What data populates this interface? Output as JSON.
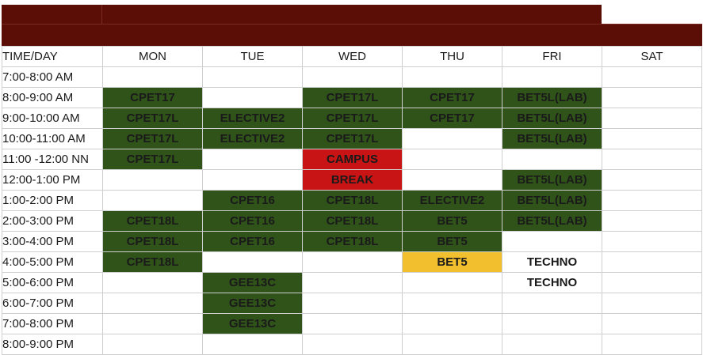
{
  "days": [
    "MON",
    "TUE",
    "WED",
    "THU",
    "FRI",
    "SAT"
  ],
  "corner_label": "TIME/DAY",
  "colors": {
    "header_band": "#5a0e06",
    "class_green": "#2f5319",
    "break_red": "#c81414",
    "highlight_yellow": "#f2c02f",
    "grid_line": "#cfcfcf"
  },
  "rows": [
    {
      "time": "7:00-8:00 AM",
      "cells": [
        "",
        "",
        "",
        "",
        "",
        ""
      ]
    },
    {
      "time": "8:00-9:00 AM",
      "cells": [
        "CPET17",
        "",
        "CPET17L",
        "CPET17",
        "BET5L(LAB)",
        ""
      ]
    },
    {
      "time": "9:00-10:00 AM",
      "cells": [
        "CPET17L",
        "ELECTIVE2",
        "CPET17L",
        "CPET17",
        "BET5L(LAB)",
        ""
      ]
    },
    {
      "time": "10:00-11:00 AM",
      "cells": [
        "CPET17L",
        "ELECTIVE2",
        "CPET17L",
        "",
        "BET5L(LAB)",
        ""
      ]
    },
    {
      "time": "11:00 -12:00 NN",
      "cells": [
        "CPET17L",
        "",
        "CAMPUS",
        "",
        "",
        ""
      ]
    },
    {
      "time": "12:00-1:00 PM",
      "cells": [
        "",
        "",
        "BREAK",
        "",
        "BET5L(LAB)",
        ""
      ]
    },
    {
      "time": "1:00-2:00 PM",
      "cells": [
        "",
        "CPET16",
        "CPET18L",
        "ELECTIVE2",
        "BET5L(LAB)",
        ""
      ]
    },
    {
      "time": "2:00-3:00 PM",
      "cells": [
        "CPET18L",
        "CPET16",
        "CPET18L",
        "BET5",
        "BET5L(LAB)",
        ""
      ]
    },
    {
      "time": "3:00-4:00 PM",
      "cells": [
        "CPET18L",
        "CPET16",
        "CPET18L",
        "BET5",
        "",
        ""
      ]
    },
    {
      "time": "4:00-5:00 PM",
      "cells": [
        "CPET18L",
        "",
        "",
        "BET5",
        "TECHNO",
        ""
      ]
    },
    {
      "time": "5:00-6:00 PM",
      "cells": [
        "",
        "GEE13C",
        "",
        "",
        "TECHNO",
        ""
      ]
    },
    {
      "time": "6:00-7:00 PM",
      "cells": [
        "",
        "GEE13C",
        "",
        "",
        "",
        ""
      ]
    },
    {
      "time": "7:00-8:00 PM",
      "cells": [
        "",
        "GEE13C",
        "",
        "",
        "",
        ""
      ]
    },
    {
      "time": "8:00-9:00 PM",
      "cells": [
        "",
        "",
        "",
        "",
        "",
        ""
      ]
    }
  ]
}
